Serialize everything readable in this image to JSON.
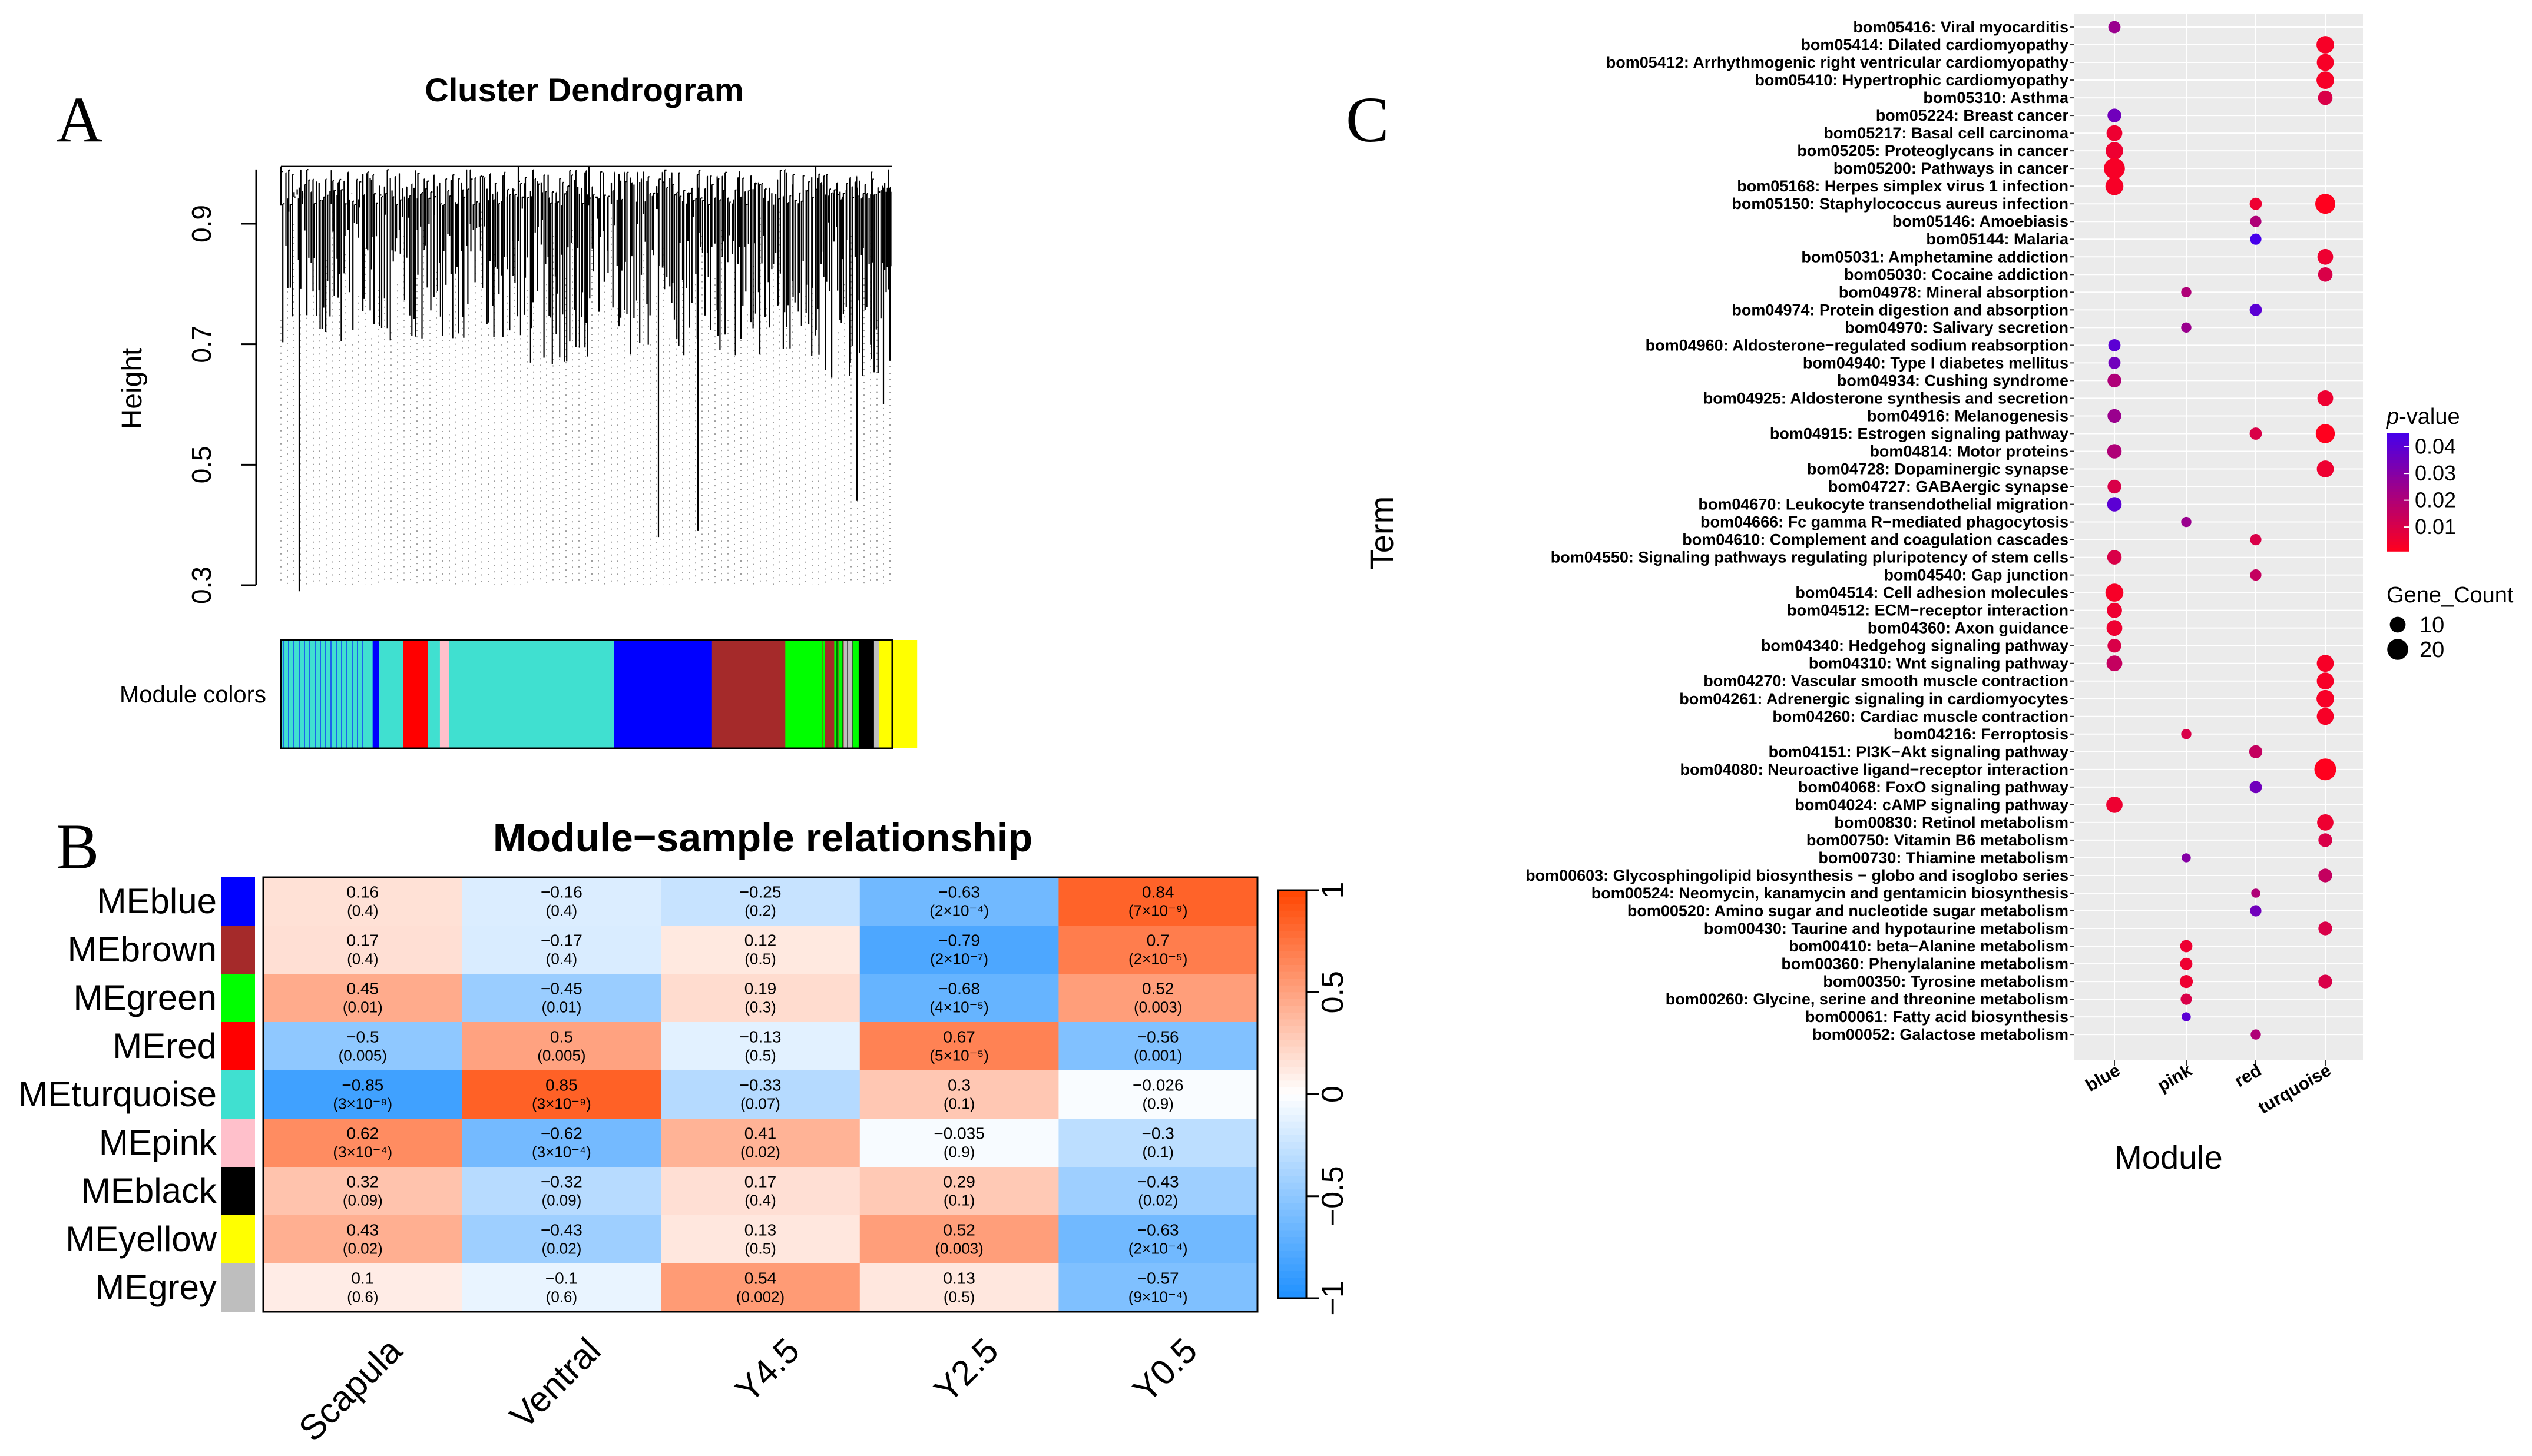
{
  "panels": {
    "a": "A",
    "b": "B",
    "c": "C"
  },
  "chart_data": [
    {
      "type": "dendrogram",
      "title": "Cluster Dendrogram",
      "ylabel": "Height",
      "yticks": [
        "0.3",
        "0.5",
        "0.7",
        "0.9"
      ],
      "ylim": [
        0.28,
        1.0
      ],
      "module_label": "Module colors",
      "module_segments": [
        {
          "color": "#40E0D0",
          "share": 0.15
        },
        {
          "color": "#0000FF",
          "share": 0.01
        },
        {
          "color": "#40E0D0",
          "share": 0.04
        },
        {
          "color": "#FF0000",
          "share": 0.04
        },
        {
          "color": "#40E0D0",
          "share": 0.02
        },
        {
          "color": "#FFC0CB",
          "share": 0.015
        },
        {
          "color": "#40E0D0",
          "share": 0.27
        },
        {
          "color": "#0000FF",
          "share": 0.16
        },
        {
          "color": "#A52A2A",
          "share": 0.12
        },
        {
          "color": "#00FF00",
          "share": 0.065
        },
        {
          "color": "#A52A2A",
          "share": 0.015
        },
        {
          "color": "#00FF00",
          "share": 0.015
        },
        {
          "color": "#BEBEBE",
          "share": 0.015
        },
        {
          "color": "#00FF00",
          "share": 0.01
        },
        {
          "color": "#000000",
          "share": 0.025
        },
        {
          "color": "#BEBEBE",
          "share": 0.008
        },
        {
          "color": "#FFFF00",
          "share": 0.062
        }
      ]
    },
    {
      "type": "heatmap",
      "title": "Module−sample relationship",
      "rows": [
        "MEblue",
        "MEbrown",
        "MEgreen",
        "MEred",
        "MEturquoise",
        "MEpink",
        "MEblack",
        "MEyellow",
        "MEgrey"
      ],
      "row_colors": [
        "#0000FF",
        "#A52A2A",
        "#00FF00",
        "#FF0000",
        "#40E0D0",
        "#FFC0CB",
        "#000000",
        "#FFFF00",
        "#BEBEBE"
      ],
      "columns": [
        "Scapula",
        "Ventral",
        "Y4.5",
        "Y2.5",
        "Y0.5"
      ],
      "values": [
        [
          0.16,
          -0.16,
          -0.25,
          -0.63,
          0.84
        ],
        [
          0.17,
          -0.17,
          0.12,
          -0.79,
          0.7
        ],
        [
          0.45,
          -0.45,
          0.19,
          -0.68,
          0.52
        ],
        [
          -0.5,
          0.5,
          -0.13,
          0.67,
          -0.56
        ],
        [
          -0.85,
          0.85,
          -0.33,
          0.3,
          -0.026
        ],
        [
          0.62,
          -0.62,
          0.41,
          -0.035,
          -0.3
        ],
        [
          0.32,
          -0.32,
          0.17,
          0.29,
          -0.43
        ],
        [
          0.43,
          -0.43,
          0.13,
          0.52,
          -0.63
        ],
        [
          0.1,
          -0.1,
          0.54,
          0.13,
          -0.57
        ]
      ],
      "labels": [
        [
          "0.16",
          "−0.16",
          "−0.25",
          "−0.63",
          "0.84"
        ],
        [
          "0.17",
          "−0.17",
          "0.12",
          "−0.79",
          "0.7"
        ],
        [
          "0.45",
          "−0.45",
          "0.19",
          "−0.68",
          "0.52"
        ],
        [
          "−0.5",
          "0.5",
          "−0.13",
          "0.67",
          "−0.56"
        ],
        [
          "−0.85",
          "0.85",
          "−0.33",
          "0.3",
          "−0.026"
        ],
        [
          "0.62",
          "−0.62",
          "0.41",
          "−0.035",
          "−0.3"
        ],
        [
          "0.32",
          "−0.32",
          "0.17",
          "0.29",
          "−0.43"
        ],
        [
          "0.43",
          "−0.43",
          "0.13",
          "0.52",
          "−0.63"
        ],
        [
          "0.1",
          "−0.1",
          "0.54",
          "0.13",
          "−0.57"
        ]
      ],
      "pvalues": [
        [
          "(0.4)",
          "(0.4)",
          "(0.2)",
          "(2×10⁻⁴)",
          "(7×10⁻⁹)"
        ],
        [
          "(0.4)",
          "(0.4)",
          "(0.5)",
          "(2×10⁻⁷)",
          "(2×10⁻⁵)"
        ],
        [
          "(0.01)",
          "(0.01)",
          "(0.3)",
          "(4×10⁻⁵)",
          "(0.003)"
        ],
        [
          "(0.005)",
          "(0.005)",
          "(0.5)",
          "(5×10⁻⁵)",
          "(0.001)"
        ],
        [
          "(3×10⁻⁹)",
          "(3×10⁻⁹)",
          "(0.07)",
          "(0.1)",
          "(0.9)"
        ],
        [
          "(3×10⁻⁴)",
          "(3×10⁻⁴)",
          "(0.02)",
          "(0.9)",
          "(0.1)"
        ],
        [
          "(0.09)",
          "(0.09)",
          "(0.4)",
          "(0.1)",
          "(0.02)"
        ],
        [
          "(0.02)",
          "(0.02)",
          "(0.5)",
          "(0.003)",
          "(2×10⁻⁴)"
        ],
        [
          "(0.6)",
          "(0.6)",
          "(0.002)",
          "(0.5)",
          "(9×10⁻⁴)"
        ]
      ],
      "colorbar_ticks": [
        {
          "value": 1,
          "label": "1"
        },
        {
          "value": 0.5,
          "label": "0.5"
        },
        {
          "value": 0,
          "label": "0"
        },
        {
          "value": -0.5,
          "label": "−0.5"
        },
        {
          "value": -1,
          "label": "−1"
        }
      ],
      "colors": {
        "neg": "#1E90FF",
        "mid": "#FFFFFF",
        "pos": "#FF4500"
      }
    },
    {
      "type": "scatter",
      "xlabel": "Module",
      "ylabel": "Term",
      "modules": [
        "blue",
        "pink",
        "red",
        "turquoise"
      ],
      "terms": [
        "bom05416: Viral myocarditis",
        "bom05414: Dilated cardiomyopathy",
        "bom05412: Arrhythmogenic right ventricular cardiomyopathy",
        "bom05410: Hypertrophic cardiomyopathy",
        "bom05310: Asthma",
        "bom05224: Breast cancer",
        "bom05217: Basal cell carcinoma",
        "bom05205: Proteoglycans in cancer",
        "bom05200: Pathways in cancer",
        "bom05168: Herpes simplex virus 1 infection",
        "bom05150: Staphylococcus aureus infection",
        "bom05146: Amoebiasis",
        "bom05144: Malaria",
        "bom05031: Amphetamine addiction",
        "bom05030: Cocaine addiction",
        "bom04978: Mineral absorption",
        "bom04974: Protein digestion and absorption",
        "bom04970: Salivary secretion",
        "bom04960: Aldosterone−regulated sodium reabsorption",
        "bom04940: Type I diabetes mellitus",
        "bom04934: Cushing syndrome",
        "bom04925: Aldosterone synthesis and secretion",
        "bom04916: Melanogenesis",
        "bom04915: Estrogen signaling pathway",
        "bom04814: Motor proteins",
        "bom04728: Dopaminergic synapse",
        "bom04727: GABAergic synapse",
        "bom04670: Leukocyte transendothelial migration",
        "bom04666: Fc gamma R−mediated phagocytosis",
        "bom04610: Complement and coagulation cascades",
        "bom04550: Signaling pathways regulating pluripotency of stem cells",
        "bom04540: Gap junction",
        "bom04514: Cell adhesion molecules",
        "bom04512: ECM−receptor interaction",
        "bom04360: Axon guidance",
        "bom04340: Hedgehog signaling pathway",
        "bom04310: Wnt signaling pathway",
        "bom04270: Vascular smooth muscle contraction",
        "bom04261: Adrenergic signaling in cardiomyocytes",
        "bom04260: Cardiac muscle contraction",
        "bom04216: Ferroptosis",
        "bom04151: PI3K−Akt signaling pathway",
        "bom04080: Neuroactive ligand−receptor interaction",
        "bom04068: FoxO signaling pathway",
        "bom04024: cAMP signaling pathway",
        "bom00830: Retinol metabolism",
        "bom00750: Vitamin B6 metabolism",
        "bom00730: Thiamine metabolism",
        "bom00603: Glycosphingolipid biosynthesis − globo and isoglobo series",
        "bom00524: Neomycin, kanamycin and gentamicin biosynthesis",
        "bom00520: Amino sugar and nucleotide sugar metabolism",
        "bom00430: Taurine and hypotaurine metabolism",
        "bom00410: beta−Alanine metabolism",
        "bom00360: Phenylalanine metabolism",
        "bom00350: Tyrosine metabolism",
        "bom00260: Glycine, serine and threonine metabolism",
        "bom00061: Fatty acid biosynthesis",
        "bom00052: Galactose metabolism"
      ],
      "points": [
        {
          "term": 0,
          "module": 0,
          "count": 5,
          "p": 0.025
        },
        {
          "term": 1,
          "module": 3,
          "count": 13,
          "p": 0.003
        },
        {
          "term": 2,
          "module": 3,
          "count": 12,
          "p": 0.003
        },
        {
          "term": 3,
          "module": 3,
          "count": 13,
          "p": 0.003
        },
        {
          "term": 4,
          "module": 3,
          "count": 8,
          "p": 0.01
        },
        {
          "term": 5,
          "module": 0,
          "count": 7,
          "p": 0.035
        },
        {
          "term": 6,
          "module": 0,
          "count": 10,
          "p": 0.005
        },
        {
          "term": 7,
          "module": 0,
          "count": 13,
          "p": 0.005
        },
        {
          "term": 8,
          "module": 0,
          "count": 20,
          "p": 0.003
        },
        {
          "term": 9,
          "module": 0,
          "count": 14,
          "p": 0.003
        },
        {
          "term": 10,
          "module": 2,
          "count": 5,
          "p": 0.005
        },
        {
          "term": 10,
          "module": 3,
          "count": 18,
          "p": 0.001
        },
        {
          "term": 11,
          "module": 2,
          "count": 4,
          "p": 0.02
        },
        {
          "term": 12,
          "module": 2,
          "count": 4,
          "p": 0.045
        },
        {
          "term": 13,
          "module": 3,
          "count": 10,
          "p": 0.005
        },
        {
          "term": 14,
          "module": 3,
          "count": 8,
          "p": 0.01
        },
        {
          "term": 15,
          "module": 1,
          "count": 3,
          "p": 0.02
        },
        {
          "term": 16,
          "module": 2,
          "count": 5,
          "p": 0.04
        },
        {
          "term": 17,
          "module": 1,
          "count": 3,
          "p": 0.025
        },
        {
          "term": 18,
          "module": 0,
          "count": 5,
          "p": 0.04
        },
        {
          "term": 19,
          "module": 0,
          "count": 5,
          "p": 0.035
        },
        {
          "term": 20,
          "module": 0,
          "count": 7,
          "p": 0.02
        },
        {
          "term": 21,
          "module": 3,
          "count": 10,
          "p": 0.005
        },
        {
          "term": 22,
          "module": 0,
          "count": 7,
          "p": 0.025
        },
        {
          "term": 23,
          "module": 2,
          "count": 5,
          "p": 0.01
        },
        {
          "term": 23,
          "module": 3,
          "count": 16,
          "p": 0.001
        },
        {
          "term": 24,
          "module": 0,
          "count": 8,
          "p": 0.02
        },
        {
          "term": 25,
          "module": 3,
          "count": 12,
          "p": 0.005
        },
        {
          "term": 26,
          "module": 0,
          "count": 7,
          "p": 0.01
        },
        {
          "term": 27,
          "module": 0,
          "count": 8,
          "p": 0.04
        },
        {
          "term": 28,
          "module": 1,
          "count": 3,
          "p": 0.025
        },
        {
          "term": 29,
          "module": 2,
          "count": 4,
          "p": 0.01
        },
        {
          "term": 30,
          "module": 0,
          "count": 8,
          "p": 0.01
        },
        {
          "term": 31,
          "module": 2,
          "count": 4,
          "p": 0.015
        },
        {
          "term": 32,
          "module": 0,
          "count": 14,
          "p": 0.003
        },
        {
          "term": 33,
          "module": 0,
          "count": 9,
          "p": 0.005
        },
        {
          "term": 34,
          "module": 0,
          "count": 10,
          "p": 0.005
        },
        {
          "term": 35,
          "module": 0,
          "count": 7,
          "p": 0.01
        },
        {
          "term": 36,
          "module": 0,
          "count": 10,
          "p": 0.015
        },
        {
          "term": 36,
          "module": 3,
          "count": 12,
          "p": 0.003
        },
        {
          "term": 37,
          "module": 3,
          "count": 12,
          "p": 0.003
        },
        {
          "term": 38,
          "module": 3,
          "count": 13,
          "p": 0.003
        },
        {
          "term": 39,
          "module": 3,
          "count": 12,
          "p": 0.003
        },
        {
          "term": 40,
          "module": 1,
          "count": 3,
          "p": 0.01
        },
        {
          "term": 41,
          "module": 2,
          "count": 6,
          "p": 0.015
        },
        {
          "term": 42,
          "module": 3,
          "count": 22,
          "p": 0.001
        },
        {
          "term": 43,
          "module": 2,
          "count": 5,
          "p": 0.035
        },
        {
          "term": 44,
          "module": 0,
          "count": 11,
          "p": 0.005
        },
        {
          "term": 45,
          "module": 3,
          "count": 11,
          "p": 0.005
        },
        {
          "term": 46,
          "module": 3,
          "count": 7,
          "p": 0.01
        },
        {
          "term": 47,
          "module": 1,
          "count": 2,
          "p": 0.03
        },
        {
          "term": 48,
          "module": 3,
          "count": 7,
          "p": 0.015
        },
        {
          "term": 49,
          "module": 2,
          "count": 2,
          "p": 0.02
        },
        {
          "term": 50,
          "module": 2,
          "count": 4,
          "p": 0.035
        },
        {
          "term": 51,
          "module": 3,
          "count": 7,
          "p": 0.01
        },
        {
          "term": 52,
          "module": 1,
          "count": 5,
          "p": 0.005
        },
        {
          "term": 53,
          "module": 1,
          "count": 5,
          "p": 0.005
        },
        {
          "term": 54,
          "module": 1,
          "count": 6,
          "p": 0.005
        },
        {
          "term": 54,
          "module": 3,
          "count": 7,
          "p": 0.01
        },
        {
          "term": 55,
          "module": 1,
          "count": 4,
          "p": 0.01
        },
        {
          "term": 56,
          "module": 1,
          "count": 2,
          "p": 0.04
        },
        {
          "term": 57,
          "module": 2,
          "count": 3,
          "p": 0.02
        }
      ],
      "legend_p": {
        "title_prefix": "p",
        "title_suffix": "-value",
        "ticks": [
          "0.04",
          "0.03",
          "0.02",
          "0.01"
        ],
        "values": [
          0.04,
          0.03,
          0.02,
          0.01
        ]
      },
      "legend_count": {
        "title": "Gene_Count",
        "items": [
          "10",
          "20"
        ],
        "values": [
          10,
          20
        ]
      }
    }
  ]
}
